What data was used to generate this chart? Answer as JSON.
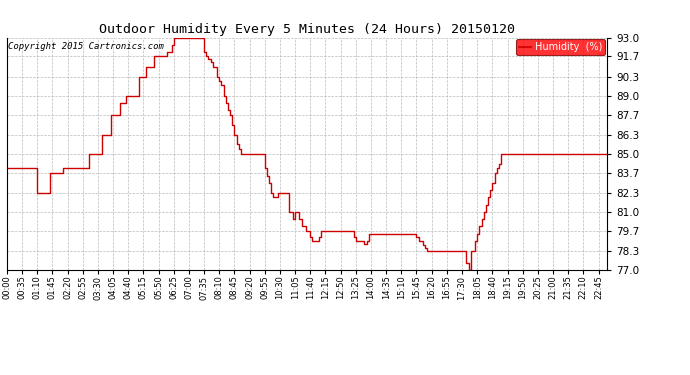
{
  "title": "Outdoor Humidity Every 5 Minutes (24 Hours) 20150120",
  "copyright": "Copyright 2015 Cartronics.com",
  "legend_label": "Humidity  (%)",
  "line_color": "#cc0000",
  "bg_color": "#ffffff",
  "grid_color": "#aaaaaa",
  "ylim": [
    77.0,
    93.0
  ],
  "yticks": [
    77.0,
    78.3,
    79.7,
    81.0,
    82.3,
    83.7,
    85.0,
    86.3,
    87.7,
    89.0,
    90.3,
    91.7,
    93.0
  ],
  "humidity": [
    84.0,
    84.0,
    84.0,
    84.0,
    84.0,
    84.0,
    84.0,
    84.0,
    84.0,
    84.0,
    84.0,
    84.0,
    84.0,
    84.0,
    82.3,
    82.3,
    82.3,
    82.3,
    82.3,
    82.3,
    83.7,
    83.7,
    83.7,
    83.7,
    83.7,
    83.7,
    84.0,
    84.0,
    84.0,
    84.0,
    84.0,
    84.0,
    84.0,
    84.0,
    84.0,
    84.0,
    84.0,
    84.0,
    85.0,
    85.0,
    85.0,
    85.0,
    85.0,
    85.0,
    86.3,
    86.3,
    86.3,
    86.3,
    87.7,
    87.7,
    87.7,
    87.7,
    88.5,
    88.5,
    88.5,
    89.0,
    89.0,
    89.0,
    89.0,
    89.0,
    89.0,
    90.3,
    90.3,
    90.3,
    91.0,
    91.0,
    91.0,
    91.0,
    91.7,
    91.7,
    91.7,
    91.7,
    91.7,
    91.7,
    92.0,
    92.0,
    92.5,
    93.0,
    93.0,
    93.0,
    93.0,
    93.0,
    93.0,
    93.0,
    93.0,
    93.0,
    93.0,
    93.0,
    93.0,
    93.0,
    93.0,
    92.0,
    91.7,
    91.5,
    91.3,
    91.0,
    91.0,
    90.3,
    90.0,
    89.7,
    89.0,
    88.5,
    88.0,
    87.7,
    87.0,
    86.3,
    85.7,
    85.3,
    85.0,
    85.0,
    85.0,
    85.0,
    85.0,
    85.0,
    85.0,
    85.0,
    85.0,
    85.0,
    85.0,
    84.0,
    83.5,
    83.0,
    82.3,
    82.0,
    82.0,
    82.3,
    82.3,
    82.3,
    82.3,
    82.3,
    81.0,
    81.0,
    80.5,
    81.0,
    81.0,
    80.5,
    80.0,
    80.0,
    79.7,
    79.7,
    79.3,
    79.0,
    79.0,
    79.0,
    79.3,
    79.7,
    79.7,
    79.7,
    79.7,
    79.7,
    79.7,
    79.7,
    79.7,
    79.7,
    79.7,
    79.7,
    79.7,
    79.7,
    79.7,
    79.7,
    79.3,
    79.0,
    79.0,
    79.0,
    79.0,
    78.8,
    79.0,
    79.5,
    79.5,
    79.5,
    79.5,
    79.5,
    79.5,
    79.5,
    79.5,
    79.5,
    79.5,
    79.5,
    79.5,
    79.5,
    79.5,
    79.5,
    79.5,
    79.5,
    79.5,
    79.5,
    79.5,
    79.5,
    79.5,
    79.3,
    79.0,
    79.0,
    78.7,
    78.5,
    78.3,
    78.3,
    78.3,
    78.3,
    78.3,
    78.3,
    78.3,
    78.3,
    78.3,
    78.3,
    78.3,
    78.3,
    78.3,
    78.3,
    78.3,
    78.3,
    78.3,
    78.3,
    77.5,
    77.0,
    78.3,
    78.3,
    79.0,
    79.5,
    80.0,
    80.5,
    81.0,
    81.5,
    82.0,
    82.5,
    83.0,
    83.7,
    84.0,
    84.3,
    85.0,
    85.0,
    85.0,
    85.0,
    85.0,
    85.0,
    85.0,
    85.0,
    85.0,
    85.0,
    85.0,
    85.0,
    85.0,
    85.0,
    85.0,
    85.0,
    85.0,
    85.0,
    85.0,
    85.0,
    85.0,
    85.0,
    85.0,
    85.0,
    85.0,
    85.0,
    85.0,
    85.0,
    85.0,
    85.0,
    85.0,
    85.0,
    85.0,
    85.0,
    85.0,
    85.0,
    85.0,
    85.0,
    85.0,
    85.0,
    85.0,
    85.0,
    85.0,
    85.0,
    85.0,
    85.0,
    85.0,
    85.0,
    85.0,
    85.0
  ]
}
